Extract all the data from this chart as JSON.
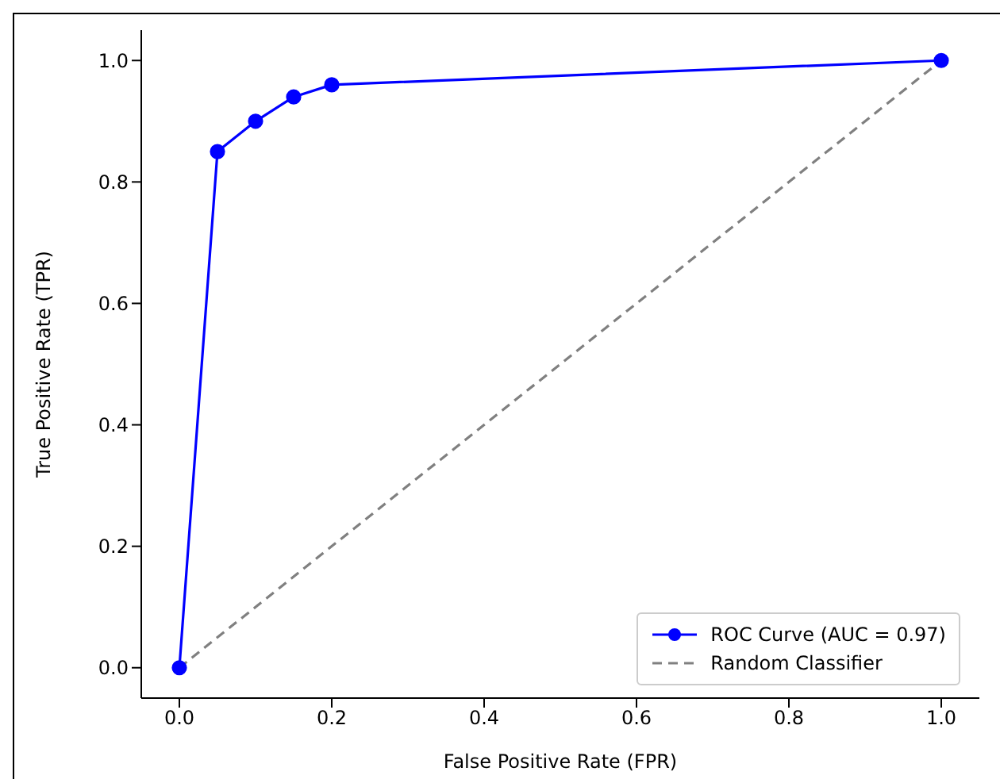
{
  "chart_data": {
    "type": "line",
    "xlabel": "False Positive Rate (FPR)",
    "ylabel": "True Positive Rate (TPR)",
    "series": [
      {
        "name": "ROC Curve (AUC = 0.97)",
        "color": "#0000ff",
        "x": [
          0,
          0.05,
          0.1,
          0.15,
          0.2,
          1
        ],
        "values": [
          0,
          0.85,
          0.9,
          0.94,
          0.96,
          1
        ],
        "marker": "circle",
        "line_style": "solid"
      },
      {
        "name": "Random Classifier",
        "color": "#808080",
        "x": [
          0,
          1
        ],
        "values": [
          0,
          1
        ],
        "marker": "none",
        "line_style": "dashed"
      }
    ],
    "xlim": [
      -0.05,
      1.05
    ],
    "ylim": [
      -0.05,
      1.05
    ],
    "xticks": [
      {
        "value": 0,
        "label": "0.0"
      },
      {
        "value": 0.2,
        "label": "0.2"
      },
      {
        "value": 0.4,
        "label": "0.4"
      },
      {
        "value": 0.6,
        "label": "0.6"
      },
      {
        "value": 0.8,
        "label": "0.8"
      },
      {
        "value": 1,
        "label": "1.0"
      }
    ],
    "yticks": [
      {
        "value": 0,
        "label": "0.0"
      },
      {
        "value": 0.2,
        "label": "0.2"
      },
      {
        "value": 0.4,
        "label": "0.4"
      },
      {
        "value": 0.6,
        "label": "0.6"
      },
      {
        "value": 0.8,
        "label": "0.8"
      },
      {
        "value": 1,
        "label": "1.0"
      }
    ],
    "grid": false,
    "legend": "bottom right"
  }
}
